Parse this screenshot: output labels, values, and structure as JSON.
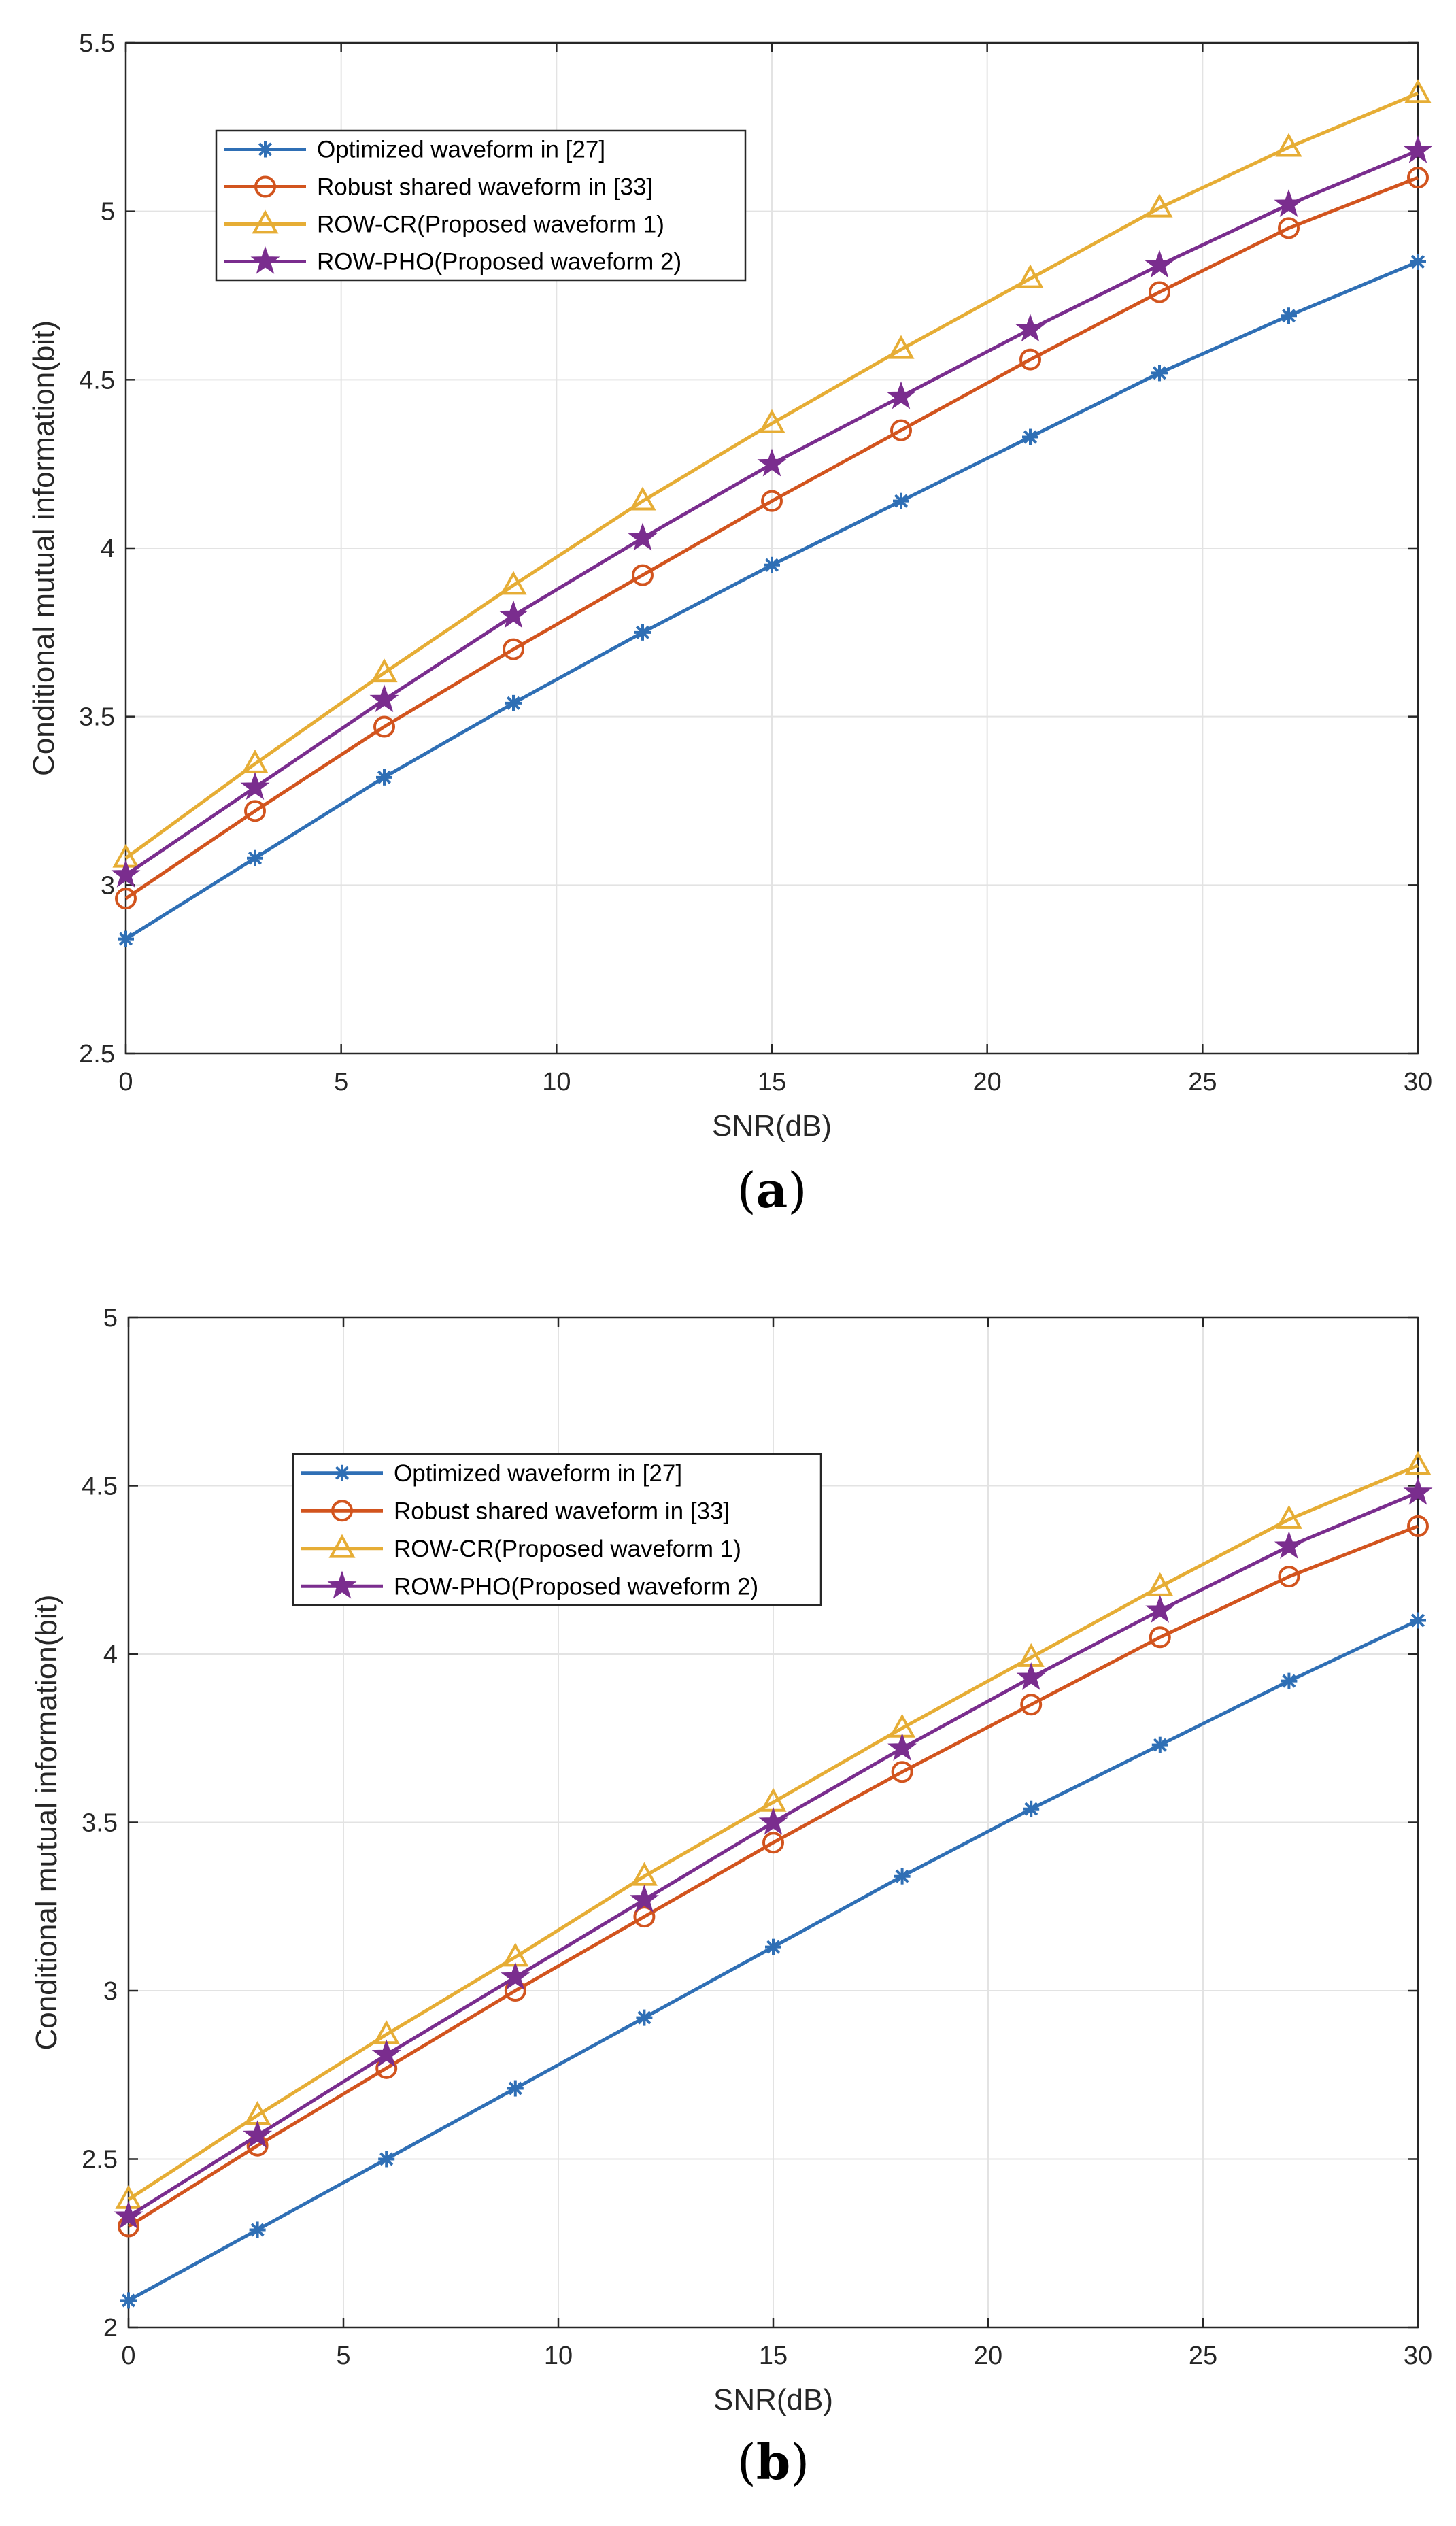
{
  "colors": {
    "optimized": "#2f6fb5",
    "robust": "#d2541e",
    "rowcr": "#e6ad35",
    "rowpho": "#7a2d8e"
  },
  "chart_data": [
    {
      "type": "line",
      "panel": "a",
      "caption_open": "(",
      "caption_letter": "a",
      "caption_close": ")",
      "xlabel": "SNR(dB)",
      "ylabel": "Conditional mutual information(bit)",
      "xlim": [
        0,
        30
      ],
      "ylim": [
        2.5,
        5.5
      ],
      "xticks": [
        "0",
        "5",
        "10",
        "15",
        "20",
        "25",
        "30"
      ],
      "yticks": [
        "2.5",
        "3",
        "3.5",
        "4",
        "4.5",
        "5",
        "5.5"
      ],
      "grid": true,
      "legend_position": "top-left",
      "x": [
        0,
        3,
        6,
        9,
        12,
        15,
        18,
        21,
        24,
        27,
        30
      ],
      "series": [
        {
          "name": "Optimized waveform in [27]",
          "marker": "asterisk",
          "color_key": "optimized",
          "values": [
            2.84,
            3.08,
            3.32,
            3.54,
            3.75,
            3.95,
            4.14,
            4.33,
            4.52,
            4.69,
            4.85
          ]
        },
        {
          "name": "Robust shared waveform in [33]",
          "marker": "circle",
          "color_key": "robust",
          "values": [
            2.96,
            3.22,
            3.47,
            3.7,
            3.92,
            4.14,
            4.35,
            4.56,
            4.76,
            4.95,
            5.1
          ]
        },
        {
          "name": "ROW-CR(Proposed waveform 1)",
          "marker": "triangle",
          "color_key": "rowcr",
          "values": [
            3.08,
            3.36,
            3.63,
            3.89,
            4.14,
            4.37,
            4.59,
            4.8,
            5.01,
            5.19,
            5.35
          ]
        },
        {
          "name": "ROW-PHO(Proposed waveform 2)",
          "marker": "star",
          "color_key": "rowpho",
          "values": [
            3.03,
            3.29,
            3.55,
            3.8,
            4.03,
            4.25,
            4.45,
            4.65,
            4.84,
            5.02,
            5.18
          ]
        }
      ]
    },
    {
      "type": "line",
      "panel": "b",
      "caption_open": "(",
      "caption_letter": "b",
      "caption_close": ")",
      "xlabel": "SNR(dB)",
      "ylabel": "Conditional mutual information(bit)",
      "xlim": [
        0,
        30
      ],
      "ylim": [
        2,
        5
      ],
      "xticks": [
        "0",
        "5",
        "10",
        "15",
        "20",
        "25",
        "30"
      ],
      "yticks": [
        "2",
        "2.5",
        "3",
        "3.5",
        "4",
        "4.5",
        "5"
      ],
      "grid": true,
      "legend_position": "top-left",
      "x": [
        0,
        3,
        6,
        9,
        12,
        15,
        18,
        21,
        24,
        27,
        30
      ],
      "series": [
        {
          "name": "Optimized waveform in [27]",
          "marker": "asterisk",
          "color_key": "optimized",
          "values": [
            2.08,
            2.29,
            2.5,
            2.71,
            2.92,
            3.13,
            3.34,
            3.54,
            3.73,
            3.92,
            4.1
          ]
        },
        {
          "name": "Robust shared waveform in [33]",
          "marker": "circle",
          "color_key": "robust",
          "values": [
            2.3,
            2.54,
            2.77,
            3.0,
            3.22,
            3.44,
            3.65,
            3.85,
            4.05,
            4.23,
            4.38
          ]
        },
        {
          "name": "ROW-CR(Proposed waveform 1)",
          "marker": "triangle",
          "color_key": "rowcr",
          "values": [
            2.38,
            2.63,
            2.87,
            3.1,
            3.34,
            3.56,
            3.78,
            3.99,
            4.2,
            4.4,
            4.56
          ]
        },
        {
          "name": "ROW-PHO(Proposed waveform 2)",
          "marker": "star",
          "color_key": "rowpho",
          "values": [
            2.33,
            2.57,
            2.81,
            3.04,
            3.27,
            3.5,
            3.72,
            3.93,
            4.13,
            4.32,
            4.48
          ]
        }
      ]
    }
  ]
}
